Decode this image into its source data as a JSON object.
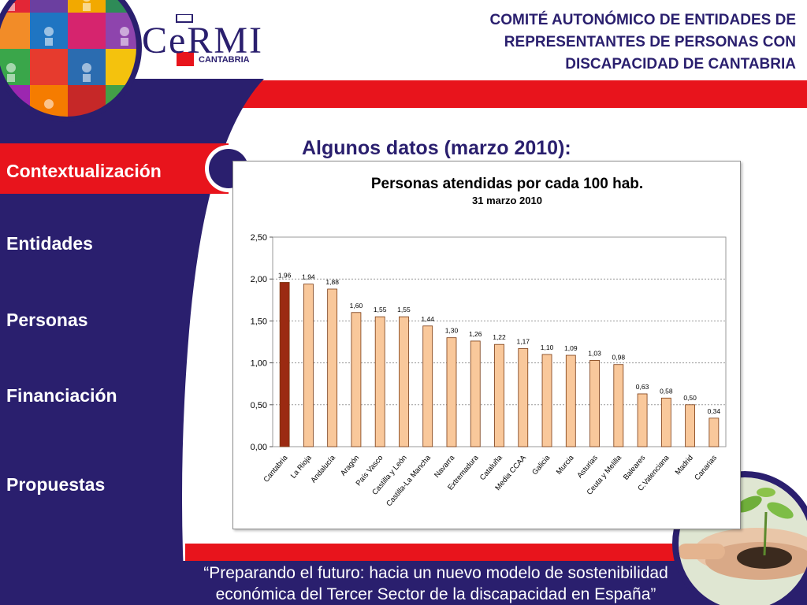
{
  "header": {
    "lines": [
      "COMITÉ AUTONÓMICO DE ENTIDADES DE",
      "REPRESENTANTES DE PERSONAS CON",
      "DISCAPACIDAD DE CANTABRIA"
    ]
  },
  "logo": {
    "name": "CeRMI",
    "sub": "CANTABRIA"
  },
  "nav": {
    "items": [
      "Contextualización",
      "Entidades",
      "Personas",
      "Financiación",
      "Propuestas"
    ],
    "active": 0
  },
  "slide_title": "Algunos datos (marzo 2010):",
  "footer": {
    "quote_lines": [
      "“Preparando el futuro: hacia un nuevo modelo de sostenibilidad",
      "económica del Tercer Sector de la discapacidad en España”"
    ]
  },
  "colors": {
    "navy": "#2a1f6e",
    "red": "#e8141c",
    "bar_highlight": "#9b2a12",
    "bar": "#f9c89b",
    "bar_stroke": "#7a3a12"
  },
  "chart_data": {
    "type": "bar",
    "title": "Personas atendidas por cada 100 hab.",
    "subtitle": "31 marzo 2010",
    "categories": [
      "Cantabria",
      "La Rioja",
      "Andalucía",
      "Aragón",
      "País Vasco",
      "Castilla y León",
      "Castilla-La Mancha",
      "Navarra",
      "Extremadura",
      "Cataluña",
      "Media CCAA",
      "Galicia",
      "Murcia",
      "Asturias",
      "Ceuta y Melilla",
      "Baleares",
      "C.Valenciana",
      "Madrid",
      "Canarias"
    ],
    "values": [
      1.96,
      1.94,
      1.88,
      1.6,
      1.55,
      1.55,
      1.44,
      1.3,
      1.26,
      1.22,
      1.17,
      1.1,
      1.09,
      1.03,
      0.98,
      0.63,
      0.58,
      0.5,
      0.34
    ],
    "value_labels": [
      "1,96",
      "1,94",
      "1,88",
      "1,60",
      "1,55",
      "1,55",
      "1,44",
      "1,30",
      "1,26",
      "1,22",
      "1,17",
      "1,10",
      "1,09",
      "1,03",
      "0,98",
      "0,63",
      "0,58",
      "0,50",
      "0,34"
    ],
    "highlight_index": 0,
    "yticks": [
      0,
      0.5,
      1,
      1.5,
      2,
      2.5
    ],
    "ytick_labels": [
      "0,00",
      "0,50",
      "1,00",
      "1,50",
      "2,00",
      "2,50"
    ],
    "ylim": [
      0,
      2.5
    ],
    "grid": true,
    "xlabel": "",
    "ylabel": ""
  }
}
